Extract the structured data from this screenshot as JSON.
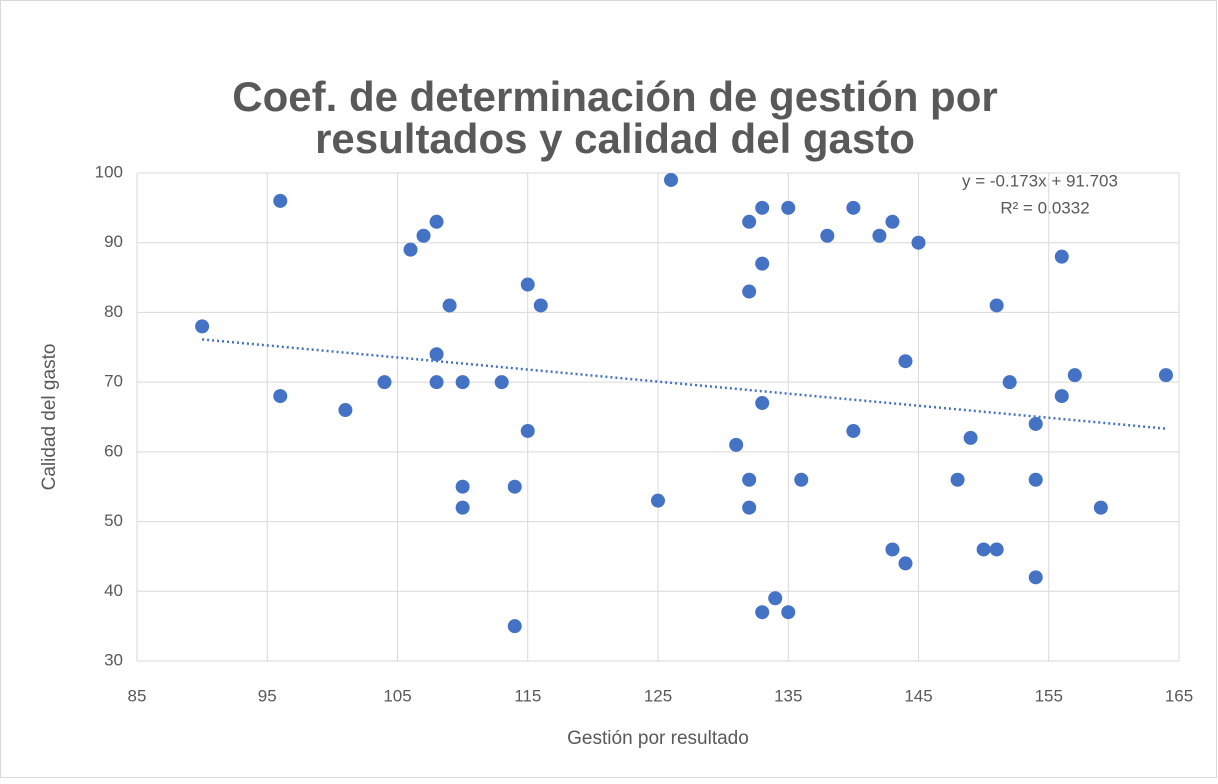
{
  "chart_data": {
    "type": "scatter",
    "title": [
      "Coef. de determinación de gestión por",
      "resultados y calidad del gasto"
    ],
    "x_label": "Gestión por resultado",
    "y_label": "Calidad del gasto",
    "color": "#4472c4",
    "x": [
      90,
      96,
      96,
      101,
      104,
      106,
      107,
      108,
      108,
      108,
      109,
      110,
      110,
      110,
      113,
      114,
      114,
      115,
      115,
      116,
      125,
      126,
      131,
      132,
      132,
      132,
      132,
      133,
      133,
      133,
      133,
      134,
      135,
      135,
      136,
      138,
      140,
      140,
      142,
      143,
      143,
      144,
      144,
      145,
      148,
      149,
      150,
      151,
      151,
      152,
      154,
      154,
      154,
      156,
      156,
      157,
      159,
      164
    ],
    "values": [
      78,
      96,
      68,
      66,
      70,
      89,
      91,
      93,
      74,
      70,
      81,
      70,
      55,
      52,
      70,
      55,
      35,
      84,
      63,
      81,
      53,
      99,
      61,
      93,
      83,
      56,
      52,
      95,
      87,
      67,
      37,
      39,
      95,
      37,
      56,
      91,
      95,
      63,
      91,
      93,
      46,
      73,
      44,
      90,
      56,
      62,
      46,
      46,
      81,
      70,
      64,
      56,
      42,
      88,
      68,
      71,
      52,
      71
    ],
    "xlim": [
      85,
      165
    ],
    "xticks": [
      85,
      95,
      105,
      115,
      125,
      135,
      145,
      155,
      165
    ],
    "ylim": [
      30,
      100
    ],
    "yticks": [
      30,
      40,
      50,
      60,
      70,
      80,
      90,
      100
    ],
    "grid": true,
    "trendline": {
      "slope": -0.173,
      "intercept": 91.703,
      "r2": 0.0332,
      "color": "#4472c4",
      "equation_label": "y = -0.173x + 91.703",
      "r2_label": "R² = 0.0332"
    }
  }
}
